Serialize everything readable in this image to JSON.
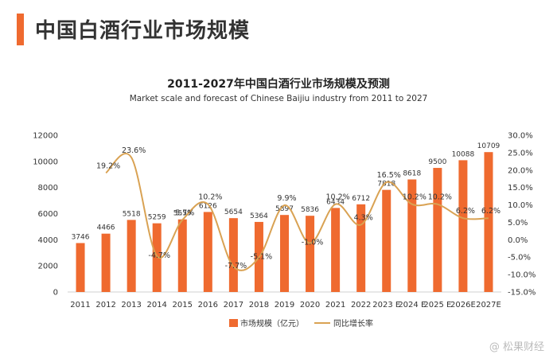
{
  "page": {
    "title": "中国白酒行业市场规模",
    "watermark": "@ 松果财经"
  },
  "colors": {
    "accent": "#ef6a2f",
    "bar": "#ef6a2f",
    "line": "#d9a253",
    "text": "#333333"
  },
  "chart_data": {
    "type": "bar",
    "title": "2011-2027年中国白酒行业市场规模及预测",
    "subtitle": "Market scale and forecast of Chinese Baijiu industry from 2011 to 2027",
    "categories": [
      "2011",
      "2012",
      "2013",
      "2014",
      "2015",
      "2016",
      "2017",
      "2018",
      "2019",
      "2020",
      "2021",
      "2022",
      "2023 E",
      "2024 E",
      "2025 E",
      "2026E",
      "2027E"
    ],
    "series": [
      {
        "name": "市场规模（亿元）",
        "type": "bar",
        "axis": "left",
        "values": [
          3746,
          4466,
          5518,
          5259,
          5559,
          6126,
          5654,
          5364,
          5897,
          5836,
          6434,
          6712,
          7818,
          8618,
          9500,
          10088,
          10709
        ]
      },
      {
        "name": "同比增长率",
        "type": "line",
        "axis": "right",
        "values": [
          null,
          19.2,
          23.6,
          -4.7,
          5.7,
          10.2,
          -7.7,
          -5.1,
          9.9,
          -1.0,
          10.2,
          4.3,
          16.5,
          10.2,
          10.2,
          6.2,
          6.2
        ],
        "labels": [
          null,
          "19.2%",
          "23.6%",
          "-4.7%",
          "5.7%",
          "10.2%",
          "-7.7%",
          "-5.1%",
          "9.9%",
          "-1.0%",
          "10.2%",
          "4.3%",
          "16.5%",
          "10.2%",
          "10.2%",
          "6.2%",
          "6.2%"
        ]
      }
    ],
    "ylim": [
      0,
      12000
    ],
    "yticks": [
      "0",
      "2000",
      "4000",
      "6000",
      "8000",
      "10000",
      "12000"
    ],
    "y2lim": [
      -15,
      30
    ],
    "y2ticks": [
      "-15.0%",
      "-10.0%",
      "-5.0%",
      "0.0%",
      "5.0%",
      "10.0%",
      "15.0%",
      "20.0%",
      "25.0%",
      "30.0%"
    ],
    "grid": false,
    "legend_position": "bottom"
  }
}
